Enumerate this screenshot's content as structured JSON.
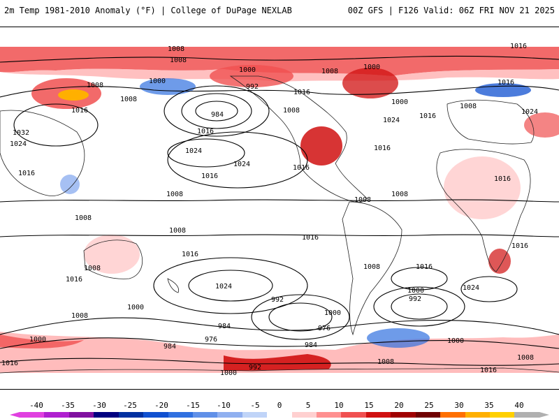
{
  "header": {
    "title_left": "2m Temp 1981-2010 Anomaly (°F) | College of DuPage NEXLAB",
    "title_right": "00Z GFS | F126 Valid: 06Z FRI NOV 21 2025"
  },
  "colorbar": {
    "ticks": [
      "-40",
      "-35",
      "-30",
      "-25",
      "-20",
      "-15",
      "-10",
      "-5",
      "0",
      "5",
      "10",
      "15",
      "20",
      "25",
      "30",
      "35",
      "40"
    ],
    "colors": [
      "#e040e0",
      "#b020d0",
      "#8010a0",
      "#000080",
      "#0030a0",
      "#1050d0",
      "#3070e0",
      "#6090e8",
      "#90b0f0",
      "#c0d4f8",
      "#ffffff",
      "#ffd0d0",
      "#ff9090",
      "#f05050",
      "#d01010",
      "#a00000",
      "#700000",
      "#ff7000",
      "#ffb000",
      "#ffd000",
      "#b0b0b0"
    ]
  },
  "map": {
    "isobar_labels": [
      "1008",
      "1008",
      "1000",
      "1008",
      "1008",
      "1000",
      "992",
      "984",
      "1016",
      "1008",
      "1016",
      "1000",
      "1008",
      "1000",
      "1016",
      "1024",
      "1008",
      "1016",
      "1024",
      "1032",
      "1024",
      "1016",
      "1016",
      "1024",
      "1024",
      "1016",
      "1016",
      "1016",
      "1008",
      "1008",
      "1008",
      "1008",
      "1016",
      "1016",
      "1008",
      "1016",
      "1016",
      "1024",
      "1008",
      "1016",
      "1016",
      "1024",
      "1008",
      "1000",
      "992",
      "1000",
      "984",
      "976",
      "1008",
      "1000",
      "992",
      "976",
      "984",
      "1000",
      "984",
      "1016",
      "1000",
      "992",
      "1000",
      "1016",
      "1008",
      "1008",
      "1016"
    ]
  }
}
